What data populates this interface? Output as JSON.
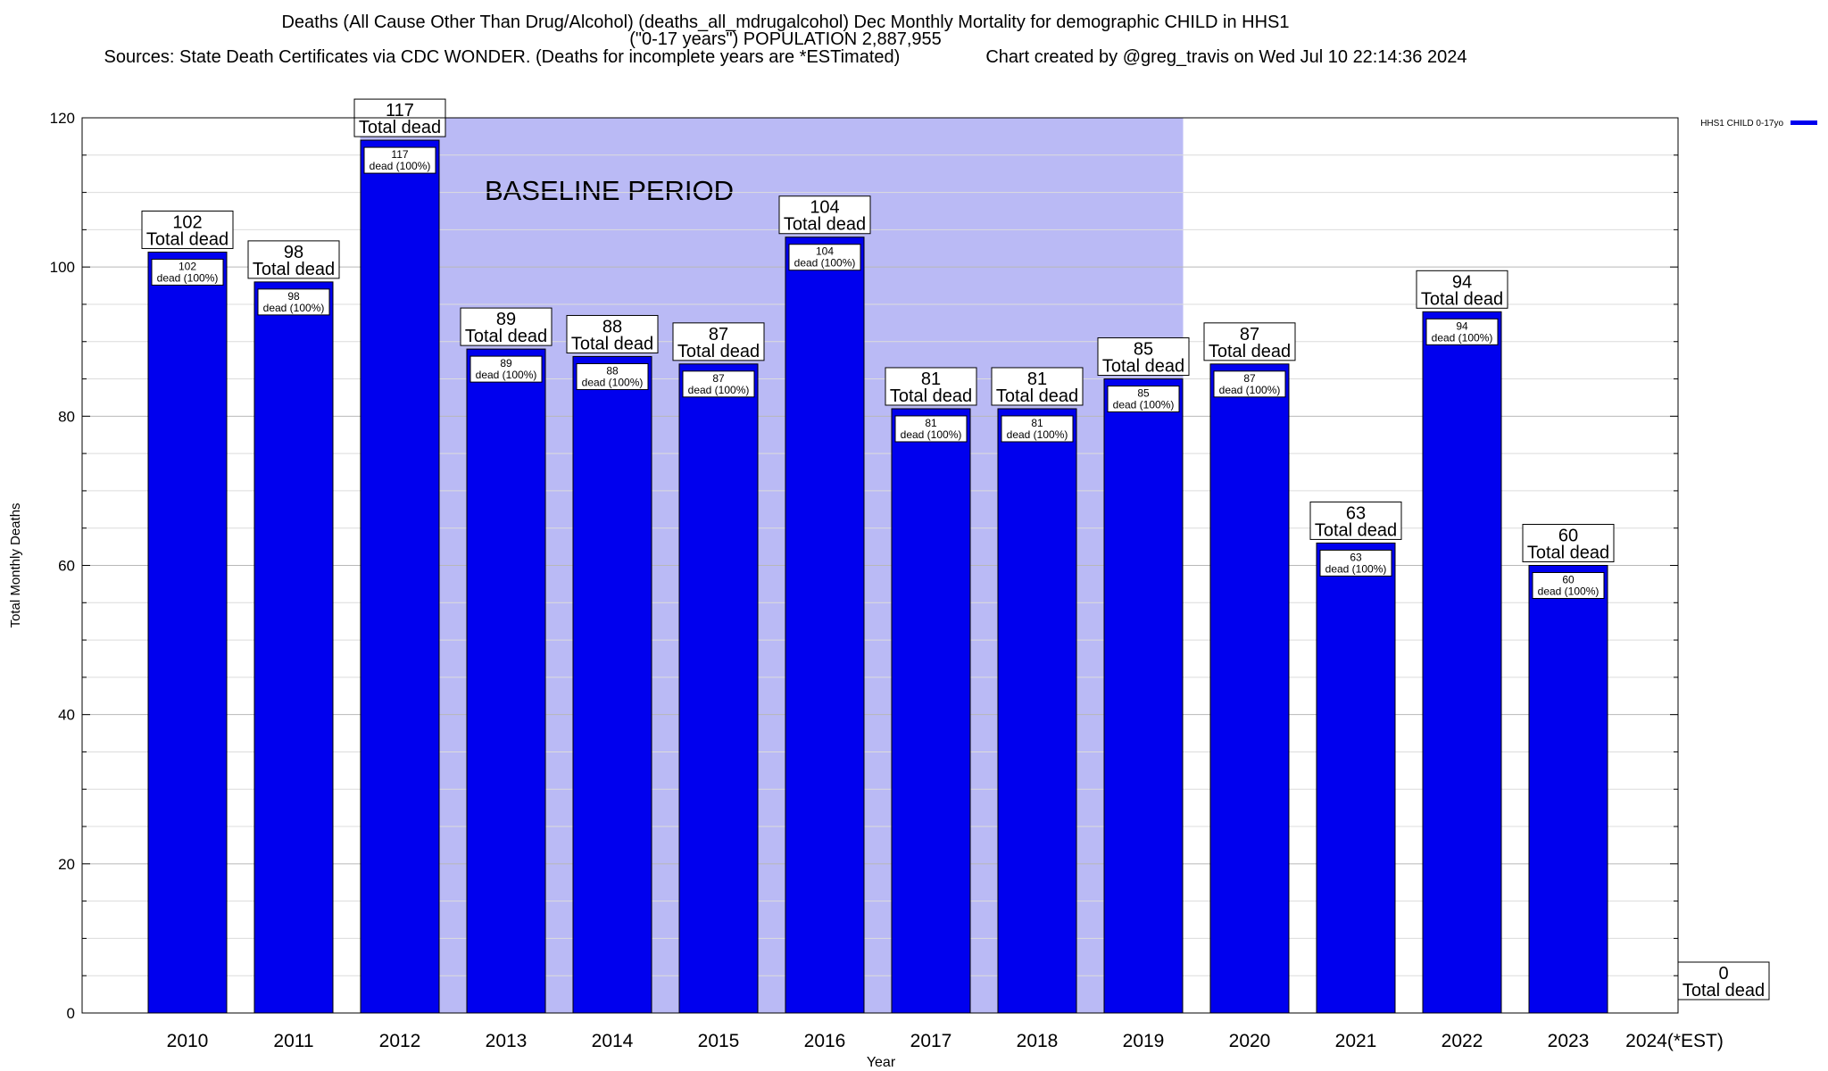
{
  "chart_data": {
    "type": "bar",
    "title": "Deaths (All Cause Other Than Drug/Alcohol) (deaths_all_mdrugalcohol) Dec Monthly Mortality for demographic CHILD in HHS1",
    "subtitle": "(\"0-17 years\") POPULATION 2,887,955",
    "sources": "Sources: State Death Certificates via CDC WONDER. (Deaths for incomplete years are *ESTimated)",
    "credit": "Chart created by @greg_travis on Wed Jul 10 22:14:36 2024",
    "xlabel": "Year",
    "ylabel": "Total Monthly Deaths",
    "ylim": [
      0,
      120
    ],
    "yticks": [
      "0",
      "20",
      "40",
      "60",
      "80",
      "100",
      "120"
    ],
    "categories": [
      "2010",
      "2011",
      "2012",
      "2013",
      "2014",
      "2015",
      "2016",
      "2017",
      "2018",
      "2019",
      "2020",
      "2021",
      "2022",
      "2023",
      "2024(*EST)"
    ],
    "series": [
      {
        "name": "HHS1 CHILD 0-17yo",
        "color": "#0000ee",
        "values": [
          102,
          98,
          117,
          89,
          88,
          87,
          104,
          81,
          81,
          85,
          87,
          63,
          94,
          60,
          0
        ]
      }
    ],
    "top_label_suffix": "Total dead",
    "inner_label_suffix": "dead (100%)",
    "baseline": {
      "label": "BASELINE PERIOD",
      "start": "2012",
      "end": "2019",
      "color": "#babaf5"
    },
    "grid": true,
    "legend_position": "top-right"
  }
}
